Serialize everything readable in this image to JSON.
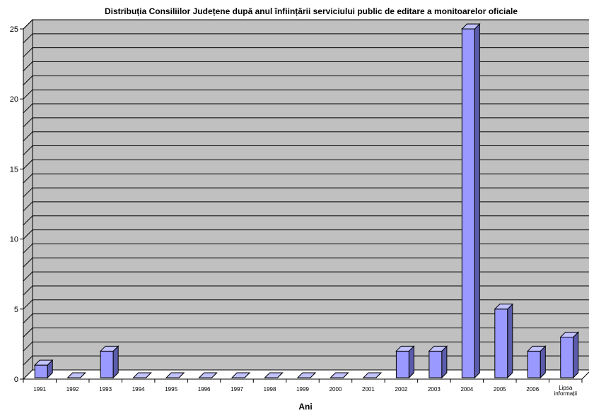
{
  "chart_data": {
    "type": "bar",
    "title": "Distribuția Consiliilor Județene după anul înființării serviciului public de editare a monitoarelor oficiale",
    "xlabel": "Ani",
    "ylabel": "",
    "categories": [
      "1991",
      "1992",
      "1993",
      "1994",
      "1995",
      "1996",
      "1997",
      "1998",
      "1999",
      "2000",
      "2001",
      "2002",
      "2003",
      "2004",
      "2005",
      "2006",
      "Lipsa informații"
    ],
    "values": [
      1,
      0,
      2,
      0,
      0,
      0,
      0,
      0,
      0,
      0,
      0,
      2,
      2,
      25,
      5,
      2,
      3
    ],
    "ylim": [
      0,
      25
    ],
    "y_ticks": [
      "0",
      "5",
      "10",
      "15",
      "20",
      "25"
    ],
    "grid": true,
    "legend": "none",
    "colors": {
      "bar_front": "#9999ff",
      "bar_side": "#5c5cad",
      "bar_top": "#c2c2ff",
      "wall": "#c0c0c0",
      "floor": "#ffffff",
      "grid": "#000000"
    }
  }
}
